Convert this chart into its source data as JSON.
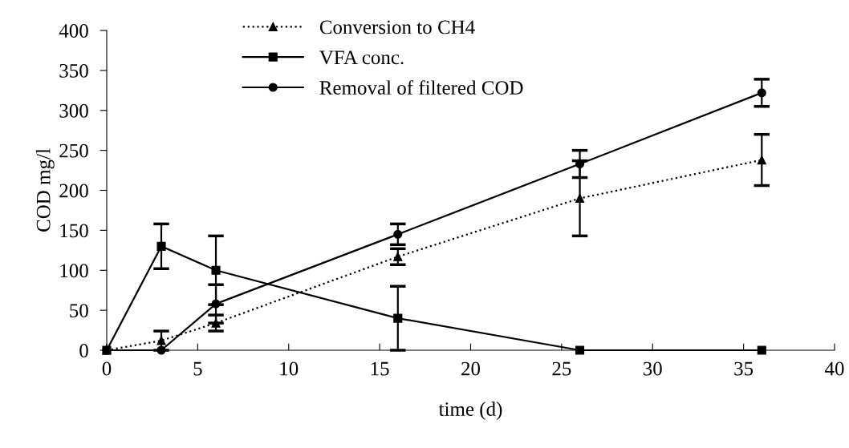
{
  "chart_data": {
    "type": "line",
    "xlabel": "time (d)",
    "ylabel": "COD mg/l",
    "x": [
      0,
      3,
      6,
      16,
      26,
      36
    ],
    "series": [
      {
        "name": "Conversion to CH4",
        "color": "#000000",
        "marker": "triangle",
        "line_style": "dotted",
        "values": [
          0,
          12,
          34,
          117,
          190,
          238
        ],
        "errors": [
          null,
          12,
          10,
          10,
          47,
          32
        ]
      },
      {
        "name": "VFA conc.",
        "color": "#000000",
        "marker": "square",
        "line_style": "solid",
        "values": [
          0,
          130,
          100,
          40,
          0,
          0
        ],
        "errors": [
          null,
          28,
          43,
          40,
          null,
          null
        ]
      },
      {
        "name": "Removal of filtered COD",
        "color": "#000000",
        "marker": "circle",
        "line_style": "solid",
        "values": [
          0,
          0,
          58,
          145,
          233,
          322
        ],
        "errors": [
          null,
          null,
          24,
          13,
          17,
          17
        ]
      }
    ],
    "xlim": [
      0,
      40
    ],
    "xticks": [
      0,
      5,
      10,
      15,
      20,
      25,
      30,
      35,
      40
    ],
    "ylim": [
      0,
      400
    ],
    "yticks": [
      0,
      50,
      100,
      150,
      200,
      250,
      300,
      350,
      400
    ],
    "grid": false,
    "legend": "top"
  }
}
